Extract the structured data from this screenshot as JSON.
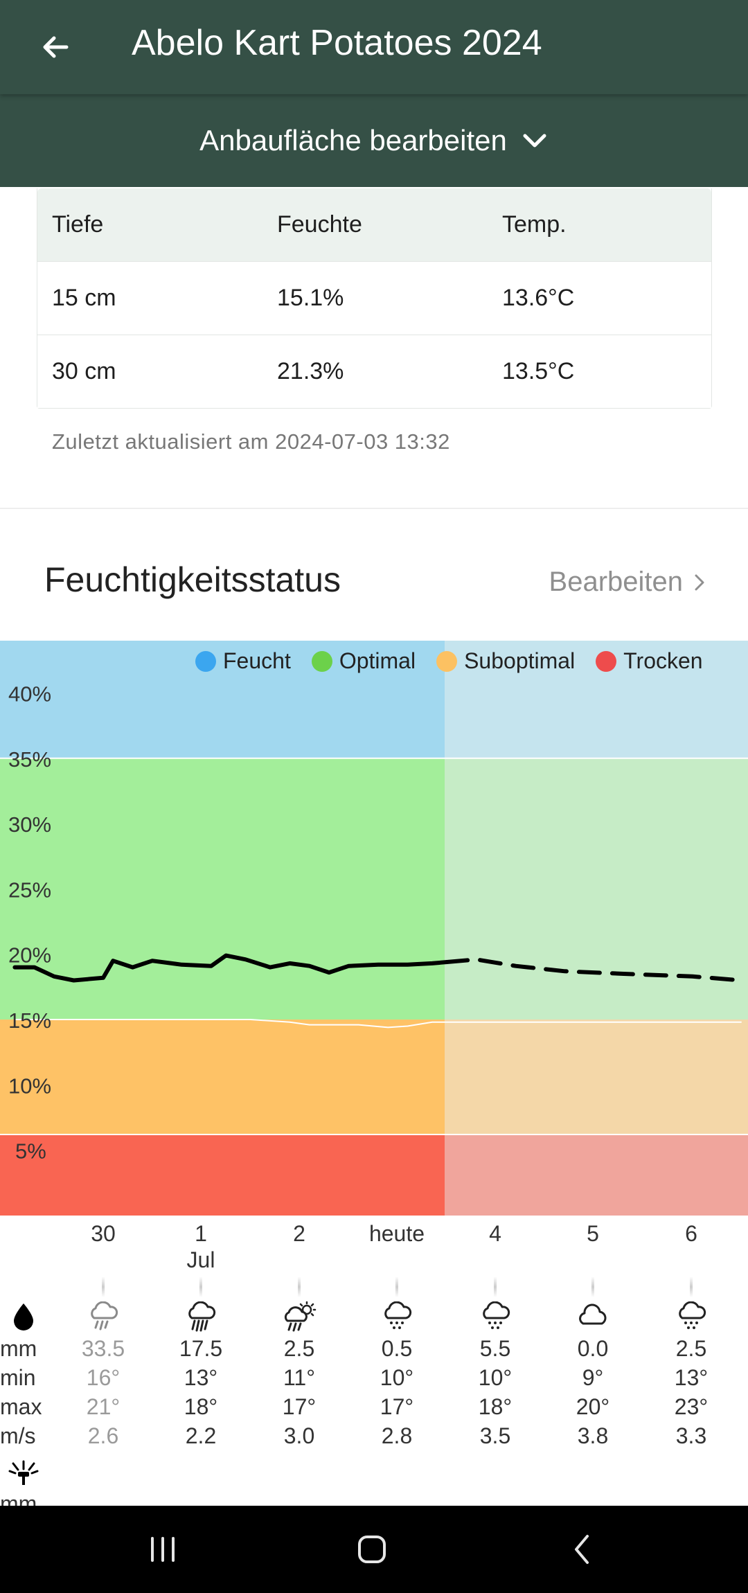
{
  "appbar": {
    "title": "Abelo Kart Potatoes 2024"
  },
  "subbar": {
    "label": "Anbaufläche bearbeiten"
  },
  "sensor_table": {
    "headers": [
      "Tiefe",
      "Feuchte",
      "Temp."
    ],
    "rows": [
      [
        "15 cm",
        "15.1%",
        "13.6°C"
      ],
      [
        "30 cm",
        "21.3%",
        "13.5°C"
      ]
    ],
    "updated": "Zuletzt aktualisiert am 2024-07-03 13:32"
  },
  "section": {
    "title": "Feuchtigkeitsstatus",
    "edit_label": "Bearbeiten"
  },
  "legend": [
    {
      "label": "Feucht",
      "color": "#3ba6ef"
    },
    {
      "label": "Optimal",
      "color": "#6cd14a"
    },
    {
      "label": "Suboptimal",
      "color": "#fcc162"
    },
    {
      "label": "Trocken",
      "color": "#ee4c4c"
    }
  ],
  "chart_data": {
    "type": "line",
    "title": "",
    "xlabel": "",
    "ylabel": "",
    "y_unit": "%",
    "ylim": [
      0,
      44
    ],
    "yticks": [
      "40%",
      "35%",
      "30%",
      "25%",
      "20%",
      "15%",
      "10%",
      "5%"
    ],
    "x_categories": [
      "30",
      "1",
      "2",
      "heute",
      "4",
      "5",
      "6"
    ],
    "today_index": 3,
    "zones": [
      {
        "name": "Feucht",
        "from": 35,
        "to": 44,
        "color": "#a1d8ef",
        "future_color": "#c5e4ee"
      },
      {
        "name": "Optimal",
        "from": 15,
        "to": 35,
        "color": "#a3ee9a",
        "future_color": "#c6ecc6"
      },
      {
        "name": "Suboptimal",
        "from": 6.2,
        "to": 15,
        "color": "#fec266",
        "future_color": "#f4d7a8"
      },
      {
        "name": "Trocken",
        "from": 0,
        "to": 6.2,
        "color": "#f96552",
        "future_color": "#f0a59c"
      }
    ],
    "optimal_lower_bound": [
      {
        "x": -0.9,
        "y": 15.0
      },
      {
        "x": 0.5,
        "y": 15.0
      },
      {
        "x": 1.5,
        "y": 15.0
      },
      {
        "x": 1.9,
        "y": 14.8
      },
      {
        "x": 2.1,
        "y": 14.6
      },
      {
        "x": 2.6,
        "y": 14.6
      },
      {
        "x": 2.9,
        "y": 14.4
      },
      {
        "x": 3.1,
        "y": 14.5
      },
      {
        "x": 3.35,
        "y": 14.8
      },
      {
        "x": 6.5,
        "y": 14.8
      }
    ],
    "series": [
      {
        "style": "solid",
        "points": [
          {
            "x": -0.9,
            "y": 19.0
          },
          {
            "x": -0.7,
            "y": 19.0
          },
          {
            "x": -0.5,
            "y": 18.3
          },
          {
            "x": -0.3,
            "y": 18.0
          },
          {
            "x": 0.0,
            "y": 18.2
          },
          {
            "x": 0.1,
            "y": 19.5
          },
          {
            "x": 0.3,
            "y": 19.0
          },
          {
            "x": 0.5,
            "y": 19.5
          },
          {
            "x": 0.8,
            "y": 19.2
          },
          {
            "x": 1.1,
            "y": 19.1
          },
          {
            "x": 1.25,
            "y": 19.9
          },
          {
            "x": 1.45,
            "y": 19.6
          },
          {
            "x": 1.7,
            "y": 19.0
          },
          {
            "x": 1.9,
            "y": 19.3
          },
          {
            "x": 2.1,
            "y": 19.1
          },
          {
            "x": 2.3,
            "y": 18.6
          },
          {
            "x": 2.5,
            "y": 19.1
          },
          {
            "x": 2.8,
            "y": 19.2
          },
          {
            "x": 3.1,
            "y": 19.2
          },
          {
            "x": 3.35,
            "y": 19.3
          },
          {
            "x": 3.5,
            "y": 19.4
          }
        ]
      },
      {
        "style": "dashed",
        "points": [
          {
            "x": 3.5,
            "y": 19.4
          },
          {
            "x": 3.8,
            "y": 19.6
          },
          {
            "x": 4.2,
            "y": 19.1
          },
          {
            "x": 4.7,
            "y": 18.7
          },
          {
            "x": 5.3,
            "y": 18.5
          },
          {
            "x": 6.0,
            "y": 18.3
          },
          {
            "x": 6.5,
            "y": 18.0
          }
        ]
      }
    ]
  },
  "forecast": {
    "row_labels": {
      "rain_icon": "rain-drop-icon",
      "r1": "mm",
      "r2": "min",
      "r3": "max",
      "r4": "m/s",
      "irrigation_icon": "sprinkler-icon",
      "r5": "mm"
    },
    "days": [
      {
        "date": "30",
        "month": "",
        "icon": "rain-icon",
        "rain": "33.5",
        "tmin": "16°",
        "tmax": "21°",
        "wind": "2.6",
        "past": true
      },
      {
        "date": "1",
        "month": "Jul",
        "icon": "heavy-rain-icon",
        "rain": "17.5",
        "tmin": "13°",
        "tmax": "18°",
        "wind": "2.2",
        "past": false
      },
      {
        "date": "2",
        "month": "",
        "icon": "sun-rain-icon",
        "rain": "2.5",
        "tmin": "11°",
        "tmax": "17°",
        "wind": "3.0",
        "past": false
      },
      {
        "date": "heute",
        "month": "",
        "icon": "drizzle-icon",
        "rain": "0.5",
        "tmin": "10°",
        "tmax": "17°",
        "wind": "2.8",
        "past": false
      },
      {
        "date": "4",
        "month": "",
        "icon": "drizzle-icon",
        "rain": "5.5",
        "tmin": "10°",
        "tmax": "18°",
        "wind": "3.5",
        "past": false
      },
      {
        "date": "5",
        "month": "",
        "icon": "cloud-icon",
        "rain": "0.0",
        "tmin": "9°",
        "tmax": "20°",
        "wind": "3.8",
        "past": false
      },
      {
        "date": "6",
        "month": "",
        "icon": "drizzle-icon",
        "rain": "2.5",
        "tmin": "13°",
        "tmax": "23°",
        "wind": "3.3",
        "past": false
      }
    ]
  }
}
